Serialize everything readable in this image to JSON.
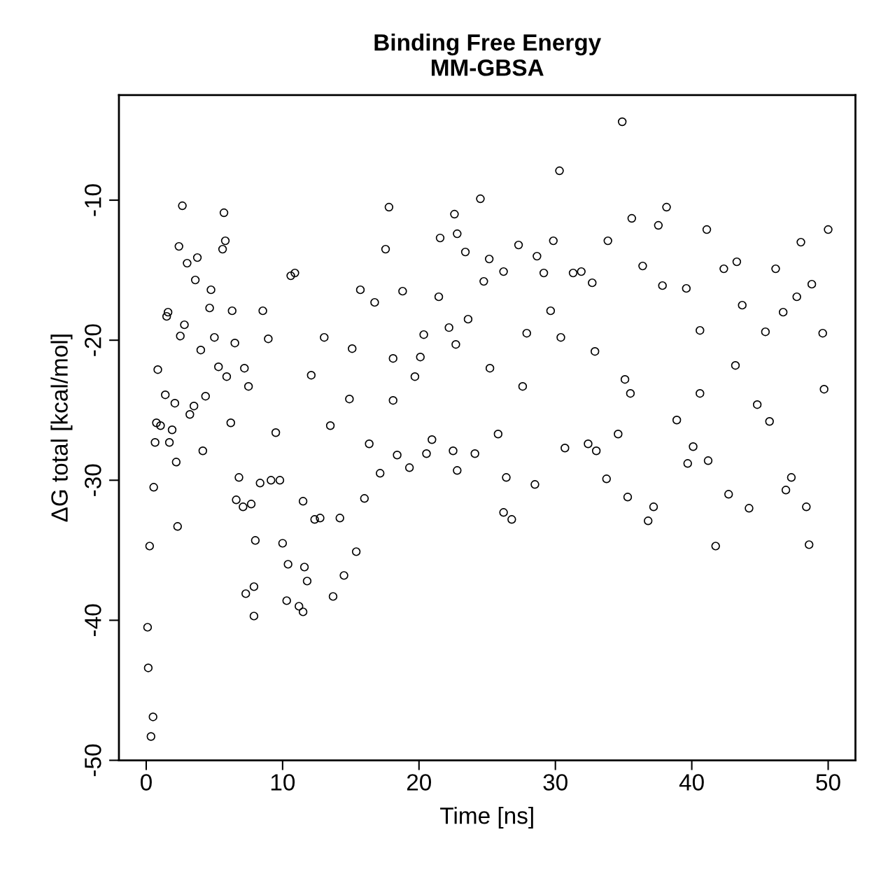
{
  "chart_data": {
    "type": "scatter",
    "title": "Binding Free Energy\nMM-GBSA",
    "xlabel": "Time [ns]",
    "ylabel": "ΔG total [kcal/mol]",
    "marker": "circle",
    "grid": false,
    "legend": false,
    "xlim": [
      -2,
      52
    ],
    "ylim": [
      -50,
      -2.5
    ],
    "xticks": [
      0,
      10,
      20,
      30,
      40,
      50
    ],
    "yticks": [
      -50,
      -40,
      -30,
      -20,
      -10
    ],
    "series": [
      {
        "color": "#000000",
        "x": [
          0.1,
          0.15,
          0.25,
          0.5,
          0.35,
          0.55,
          0.65,
          0.85,
          0.75,
          1.05,
          1.4,
          1.5,
          1.6,
          1.7,
          1.9,
          2.1,
          2.2,
          2.3,
          2.4,
          2.5,
          2.65,
          2.8,
          3.0,
          3.2,
          3.5,
          3.6,
          3.75,
          4.0,
          4.15,
          4.35,
          4.65,
          4.75,
          5.0,
          5.3,
          5.6,
          5.7,
          5.8,
          5.9,
          6.2,
          6.3,
          6.5,
          6.6,
          6.8,
          7.1,
          7.2,
          7.3,
          7.5,
          7.7,
          7.9,
          7.9,
          8.0,
          8.35,
          8.55,
          8.95,
          9.15,
          9.5,
          9.8,
          10.0,
          10.4,
          10.3,
          10.6,
          10.9,
          11.2,
          11.5,
          11.6,
          11.8,
          11.5,
          12.1,
          12.35,
          12.75,
          13.05,
          13.5,
          13.7,
          14.2,
          14.5,
          14.9,
          15.1,
          15.4,
          15.7,
          16.0,
          16.35,
          16.75,
          17.15,
          17.55,
          17.8,
          18.1,
          18.4,
          18.8,
          19.3,
          19.7,
          20.35,
          20.55,
          20.95,
          21.45,
          21.55,
          22.2,
          22.5,
          22.6,
          22.8,
          22.8,
          23.4,
          23.6,
          24.1,
          24.5,
          24.75,
          25.15,
          25.8,
          26.2,
          26.4,
          26.2,
          26.8,
          27.3,
          27.6,
          27.9,
          28.5,
          28.65,
          29.15,
          29.65,
          29.85,
          30.3,
          30.7,
          31.3,
          31.9,
          32.4,
          32.7,
          33.0,
          33.75,
          33.85,
          34.6,
          34.9,
          35.1,
          35.3,
          35.6,
          36.4,
          36.8,
          37.2,
          37.55,
          37.85,
          38.15,
          38.9,
          39.6,
          39.7,
          40.1,
          40.6,
          41.1,
          41.2,
          41.75,
          42.35,
          42.7,
          43.3,
          43.7,
          44.2,
          44.8,
          45.4,
          46.15,
          46.7,
          46.9,
          47.3,
          47.7,
          48.0,
          48.4,
          48.6,
          48.8,
          49.6,
          49.7,
          50.0,
          20.1,
          25.2,
          30.4,
          35.5,
          40.6,
          45.7,
          22.7,
          43.2,
          18.1,
          32.9
        ],
        "values": [
          -40.5,
          -43.4,
          -34.7,
          -46.9,
          -48.3,
          -30.5,
          -27.3,
          -22.1,
          -25.9,
          -26.1,
          -23.9,
          -18.3,
          -18.0,
          -27.3,
          -26.4,
          -24.5,
          -28.7,
          -33.3,
          -13.3,
          -19.7,
          -10.4,
          -18.9,
          -14.5,
          -25.3,
          -24.7,
          -15.7,
          -14.1,
          -20.7,
          -27.9,
          -24.0,
          -17.7,
          -16.4,
          -19.8,
          -21.9,
          -13.5,
          -10.9,
          -12.9,
          -22.6,
          -25.9,
          -17.9,
          -20.2,
          -31.4,
          -29.8,
          -31.9,
          -22.0,
          -38.1,
          -23.3,
          -31.7,
          -39.7,
          -37.6,
          -34.3,
          -30.2,
          -17.9,
          -19.9,
          -30.0,
          -26.6,
          -30.0,
          -34.5,
          -36.0,
          -38.6,
          -15.4,
          -15.2,
          -39.0,
          -39.4,
          -36.2,
          -37.2,
          -31.5,
          -22.5,
          -32.8,
          -32.7,
          -19.8,
          -26.1,
          -38.3,
          -32.7,
          -36.8,
          -24.2,
          -20.6,
          -35.1,
          -16.4,
          -31.3,
          -27.4,
          -17.3,
          -29.5,
          -13.5,
          -10.5,
          -21.3,
          -28.2,
          -16.5,
          -29.1,
          -22.6,
          -19.6,
          -28.1,
          -27.1,
          -16.9,
          -12.7,
          -19.1,
          -27.9,
          -11.0,
          -12.4,
          -29.3,
          -13.7,
          -18.5,
          -28.1,
          -9.9,
          -15.8,
          -14.2,
          -26.7,
          -15.1,
          -29.8,
          -32.3,
          -32.8,
          -13.2,
          -23.3,
          -19.5,
          -30.3,
          -14.0,
          -15.2,
          -17.9,
          -12.9,
          -7.9,
          -27.7,
          -15.2,
          -15.1,
          -27.4,
          -15.9,
          -27.9,
          -29.9,
          -12.9,
          -26.7,
          -4.4,
          -22.8,
          -31.2,
          -11.3,
          -14.7,
          -32.9,
          -31.9,
          -11.8,
          -16.1,
          -10.5,
          -25.7,
          -16.3,
          -28.8,
          -27.6,
          -19.3,
          -12.1,
          -28.6,
          -34.7,
          -14.9,
          -31.0,
          -14.4,
          -17.5,
          -32.0,
          -24.6,
          -19.4,
          -14.9,
          -18.0,
          -30.7,
          -29.8,
          -16.9,
          -13.0,
          -31.9,
          -34.6,
          -16.0,
          -19.5,
          -23.5,
          -12.1,
          -21.2,
          -22.0,
          -19.8,
          -23.8,
          -23.8,
          -25.8,
          -20.3,
          -21.8,
          -24.3,
          -20.8
        ]
      }
    ]
  }
}
